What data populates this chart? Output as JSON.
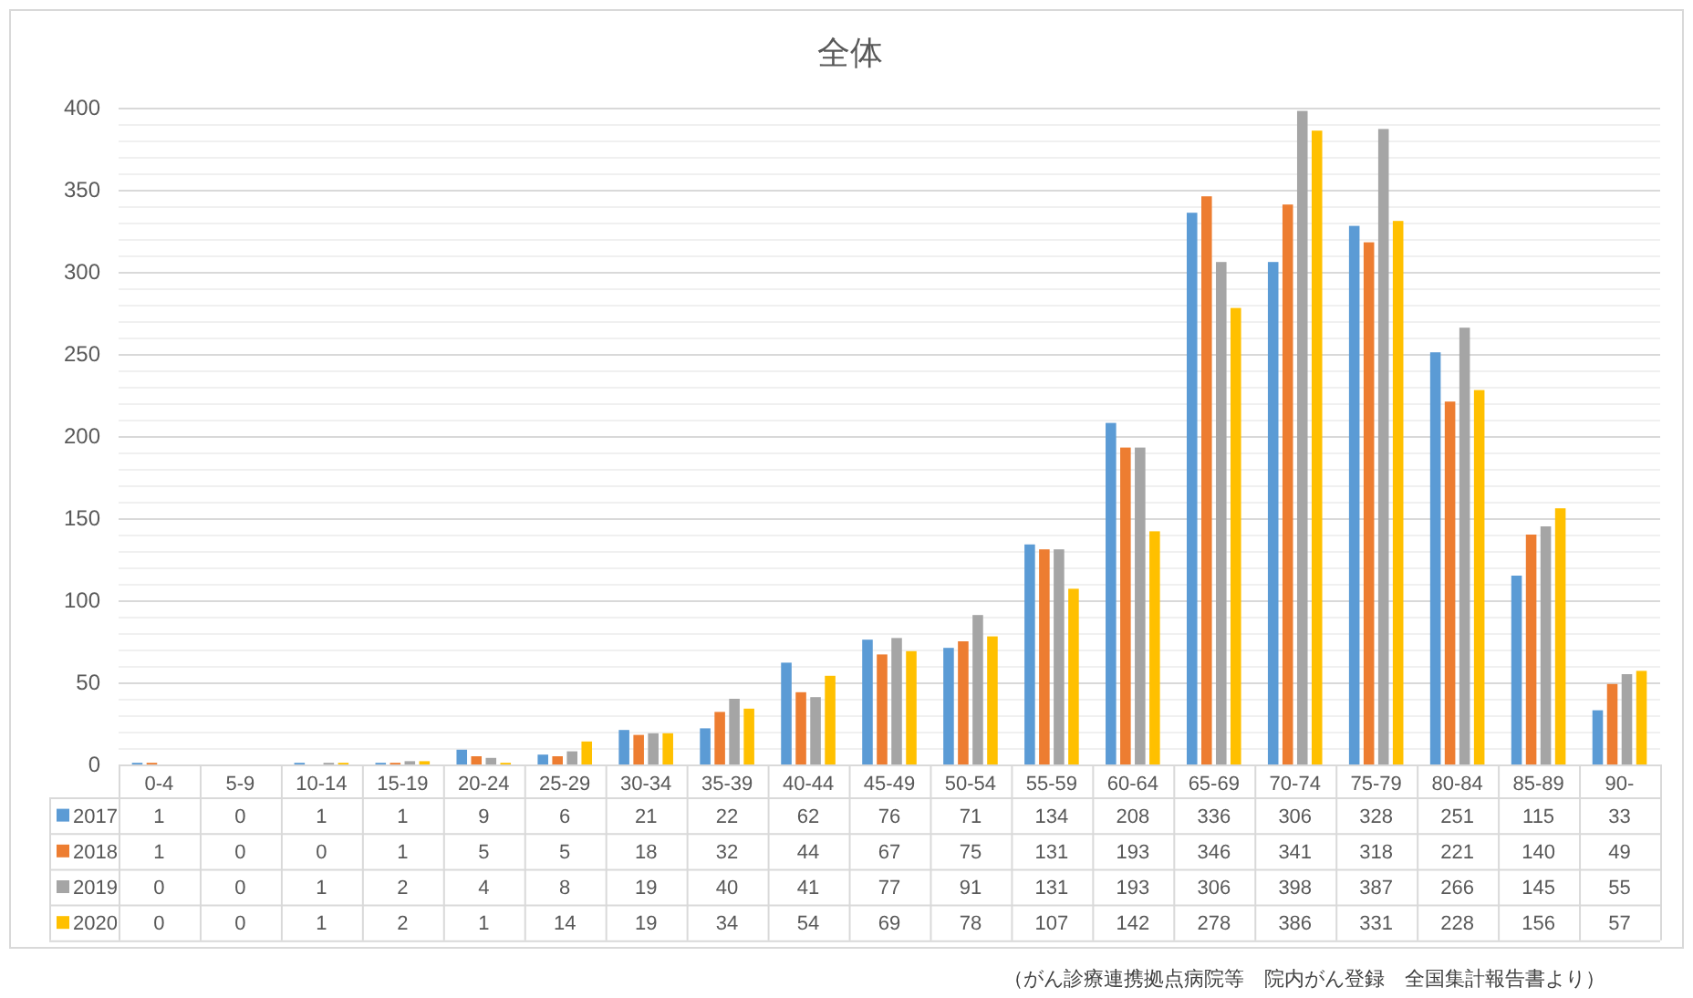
{
  "chart_data": {
    "type": "bar",
    "title": "全体",
    "categories": [
      "0-4",
      "5-9",
      "10-14",
      "15-19",
      "20-24",
      "25-29",
      "30-34",
      "35-39",
      "40-44",
      "45-49",
      "50-54",
      "55-59",
      "60-64",
      "65-69",
      "70-74",
      "75-79",
      "80-84",
      "85-89",
      "90-"
    ],
    "series": [
      {
        "name": "2017",
        "color": "#5b9bd5",
        "values": [
          1,
          0,
          1,
          1,
          9,
          6,
          21,
          22,
          62,
          76,
          71,
          134,
          208,
          336,
          306,
          328,
          251,
          115,
          33
        ]
      },
      {
        "name": "2018",
        "color": "#ed7d31",
        "values": [
          1,
          0,
          0,
          1,
          5,
          5,
          18,
          32,
          44,
          67,
          75,
          131,
          193,
          346,
          341,
          318,
          221,
          140,
          49
        ]
      },
      {
        "name": "2019",
        "color": "#a5a5a5",
        "values": [
          0,
          0,
          1,
          2,
          4,
          8,
          19,
          40,
          41,
          77,
          91,
          131,
          193,
          306,
          398,
          387,
          266,
          145,
          55
        ]
      },
      {
        "name": "2020",
        "color": "#ffc000",
        "values": [
          0,
          0,
          1,
          2,
          1,
          14,
          19,
          34,
          54,
          69,
          78,
          107,
          142,
          278,
          386,
          331,
          228,
          156,
          57
        ]
      }
    ],
    "ylim": [
      0,
      400
    ],
    "yticks": [
      0,
      {
        "value": 10,
        "label": null
      },
      {
        "value": 20,
        "label": null
      },
      {
        "value": 30,
        "label": null
      },
      {
        "value": 40,
        "label": null
      },
      50,
      {
        "value": 60,
        "label": null
      },
      {
        "value": 70,
        "label": null
      },
      {
        "value": 80,
        "label": null
      },
      {
        "value": 90,
        "label": null
      },
      100,
      {
        "value": 110,
        "label": null
      },
      {
        "value": 120,
        "label": null
      },
      {
        "value": 130,
        "label": null
      },
      {
        "value": 140,
        "label": null
      },
      150,
      {
        "value": 160,
        "label": null
      },
      {
        "value": 170,
        "label": null
      },
      {
        "value": 180,
        "label": null
      },
      {
        "value": 190,
        "label": null
      },
      200,
      {
        "value": 210,
        "label": null
      },
      {
        "value": 220,
        "label": null
      },
      {
        "value": 230,
        "label": null
      },
      {
        "value": 240,
        "label": null
      },
      250,
      {
        "value": 260,
        "label": null
      },
      {
        "value": 270,
        "label": null
      },
      {
        "value": 280,
        "label": null
      },
      {
        "value": 290,
        "label": null
      },
      300,
      {
        "value": 310,
        "label": null
      },
      {
        "value": 320,
        "label": null
      },
      {
        "value": 330,
        "label": null
      },
      {
        "value": 340,
        "label": null
      },
      350,
      {
        "value": 360,
        "label": null
      },
      {
        "value": 370,
        "label": null
      },
      {
        "value": 380,
        "label": null
      },
      {
        "value": 390,
        "label": null
      },
      400
    ],
    "grid": true,
    "legend": "bottom",
    "data_labels": true,
    "annotations": [
      "（がん診療連携拠点病院等　院内がん登録　全国集計報告書より）"
    ]
  }
}
